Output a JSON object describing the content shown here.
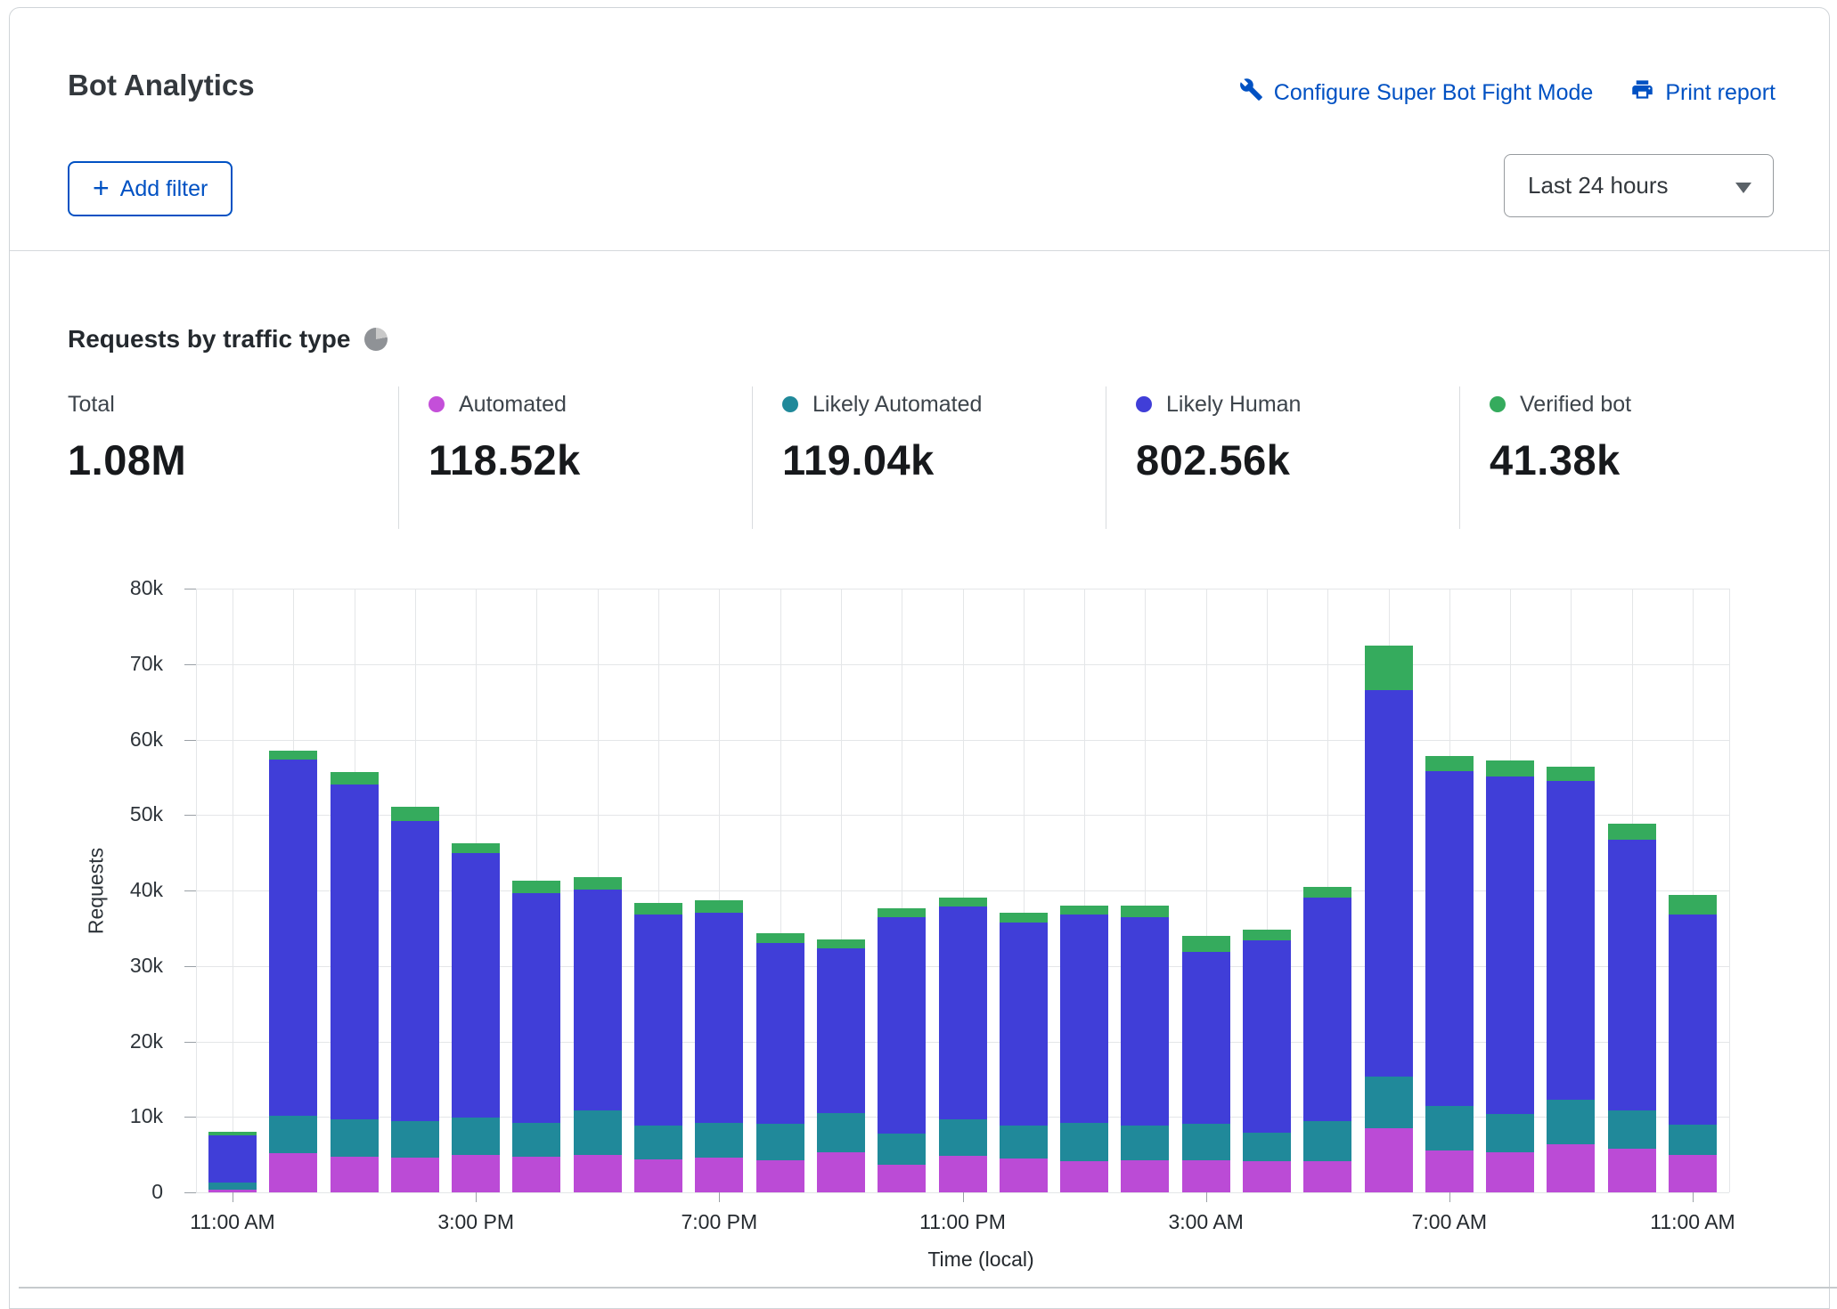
{
  "header": {
    "title": "Bot Analytics",
    "links": [
      {
        "icon": "wrench-icon",
        "label": "Configure Super Bot Fight Mode"
      },
      {
        "icon": "printer-icon",
        "label": "Print report"
      }
    ],
    "add_filter_label": "Add filter",
    "time_range": "Last 24 hours"
  },
  "section": {
    "title": "Requests by traffic type"
  },
  "stats": [
    {
      "label": "Total",
      "value": "1.08M",
      "color": null
    },
    {
      "label": "Automated",
      "value": "118.52k",
      "color": "#c44fd9"
    },
    {
      "label": "Likely Automated",
      "value": "119.04k",
      "color": "#20899a"
    },
    {
      "label": "Likely Human",
      "value": "802.56k",
      "color": "#403ed8"
    },
    {
      "label": "Verified bot",
      "value": "41.38k",
      "color": "#35ab5d"
    }
  ],
  "chart_data": {
    "type": "bar",
    "stacked": true,
    "title": "Requests by traffic type",
    "xlabel": "Time (local)",
    "ylabel": "Requests",
    "ylim": [
      0,
      80000
    ],
    "ytick_step": 10000,
    "grid": true,
    "tick_every": 4,
    "categories": [
      "11:00 AM",
      "12:00 PM",
      "1:00 PM",
      "2:00 PM",
      "3:00 PM",
      "4:00 PM",
      "5:00 PM",
      "6:00 PM",
      "7:00 PM",
      "8:00 PM",
      "9:00 PM",
      "10:00 PM",
      "11:00 PM",
      "12:00 AM",
      "1:00 AM",
      "2:00 AM",
      "3:00 AM",
      "4:00 AM",
      "5:00 AM",
      "6:00 AM",
      "7:00 AM",
      "8:00 AM",
      "9:00 AM",
      "10:00 AM",
      "11:00 AM"
    ],
    "series": [
      {
        "name": "Automated",
        "color": "#bb4bd6",
        "values": [
          400,
          5200,
          4700,
          4600,
          5000,
          4700,
          5000,
          4400,
          4600,
          4300,
          5300,
          3700,
          4800,
          4500,
          4100,
          4300,
          4200,
          4100,
          4100,
          8500,
          5600,
          5300,
          6400,
          5800,
          4900
        ]
      },
      {
        "name": "Likely Automated",
        "color": "#20899a",
        "values": [
          900,
          5000,
          5000,
          4800,
          4900,
          4500,
          5800,
          4500,
          4600,
          4800,
          5200,
          4100,
          4900,
          4300,
          5100,
          4500,
          4900,
          3800,
          5300,
          6800,
          5800,
          5100,
          5900,
          5100,
          4100
        ]
      },
      {
        "name": "Likely Human",
        "color": "#403ed8",
        "values": [
          6300,
          47100,
          44300,
          39800,
          35000,
          30500,
          29300,
          27900,
          27900,
          23900,
          21800,
          28700,
          28200,
          27000,
          27600,
          27700,
          22800,
          25500,
          29600,
          51200,
          44400,
          44700,
          42200,
          35800,
          27800
        ]
      },
      {
        "name": "Verified bot",
        "color": "#35ab5d",
        "values": [
          400,
          1200,
          1700,
          1900,
          1400,
          1600,
          1700,
          1500,
          1600,
          1300,
          1200,
          1100,
          1100,
          1300,
          1200,
          1500,
          2100,
          1400,
          1500,
          5900,
          2000,
          2100,
          1900,
          2100,
          2600
        ]
      }
    ]
  }
}
